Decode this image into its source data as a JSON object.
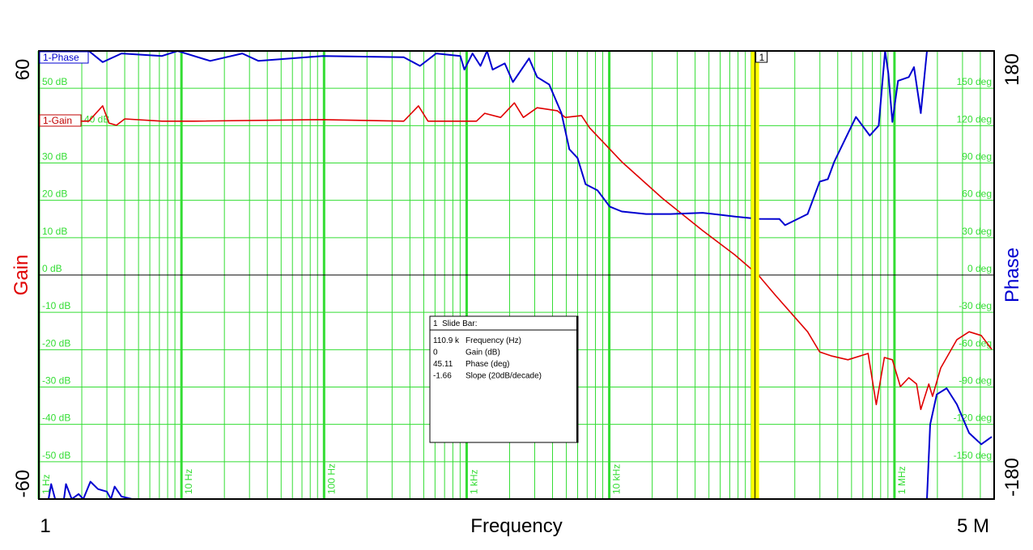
{
  "chart_data": {
    "type": "line",
    "x_scale": "log",
    "xlim": [
      1,
      5000000
    ],
    "ylim_left": [
      -60,
      60
    ],
    "ylim_right": [
      -180,
      180
    ],
    "grid": true,
    "xlabel": "Frequency",
    "ylabel_left": "Gain",
    "ylabel_right": "Phase",
    "x_end_labels": [
      "1",
      "5 M"
    ],
    "y_left_end_labels": [
      "60",
      "-60"
    ],
    "y_right_end_labels": [
      "180",
      "-180"
    ],
    "gain_ticks": [
      "50 dB",
      "40 dB",
      "30 dB",
      "20 dB",
      "10 dB",
      "0 dB",
      "-10 dB",
      "-20 dB",
      "-30 dB",
      "-40 dB",
      "-50 dB"
    ],
    "gain_tick_values": [
      50,
      40,
      30,
      20,
      10,
      0,
      -10,
      -20,
      -30,
      -40,
      -50
    ],
    "phase_ticks": [
      "150 deg",
      "120 deg",
      "90 deg",
      "60 deg",
      "30 deg",
      "0 deg",
      "-30 deg",
      "-60 deg",
      "-90 deg",
      "-120 deg",
      "-150 deg"
    ],
    "freq_labels": [
      {
        "f": 1,
        "label": "1 Hz"
      },
      {
        "f": 10,
        "label": "10 Hz"
      },
      {
        "f": 100,
        "label": "100 Hz"
      },
      {
        "f": 1000,
        "label": "1 kHz"
      },
      {
        "f": 10000,
        "label": "10 kHz"
      },
      {
        "f": 1000000,
        "label": "1 MHz"
      }
    ],
    "colors": {
      "gain": "#e00000",
      "phase": "#0000d0",
      "grid": "#33dd33",
      "slider": "#ffff00"
    },
    "series": [
      {
        "name": "1-Gain",
        "axis": "left",
        "unit": "dB",
        "segments": [
          [
            [
              1,
              41.2
            ],
            [
              2.24,
              41.2
            ],
            [
              2.8,
              45.3
            ],
            [
              3.1,
              40.7
            ],
            [
              3.5,
              40.1
            ],
            [
              4.0,
              41.8
            ],
            [
              7.3,
              41.2
            ],
            [
              12.2,
              41.2
            ],
            [
              98,
              41.6
            ],
            [
              362,
              41.2
            ],
            [
              459,
              45.3
            ],
            [
              536,
              41.2
            ],
            [
              1170,
              41.2
            ],
            [
              1340,
              43.3
            ],
            [
              1730,
              42.2
            ],
            [
              2160,
              46.1
            ],
            [
              2500,
              42.2
            ],
            [
              3120,
              44.8
            ],
            [
              4320,
              44.0
            ],
            [
              4920,
              42.2
            ],
            [
              6390,
              42.7
            ],
            [
              7280,
              39.4
            ],
            [
              12250,
              30.3
            ],
            [
              23500,
              20.6
            ],
            [
              45200,
              11.9
            ],
            [
              76000,
              5.4
            ],
            [
              110900,
              0
            ],
            [
              146000,
              -5.4
            ],
            [
              246000,
              -15.2
            ],
            [
              299000,
              -20.6
            ],
            [
              364000,
              -21.7
            ],
            [
              472000,
              -22.7
            ],
            [
              653000,
              -21.0
            ],
            [
              745000,
              -34.7
            ],
            [
              849000,
              -22.1
            ],
            [
              967000,
              -22.7
            ],
            [
              1100000,
              -29.9
            ],
            [
              1260000,
              -27.5
            ],
            [
              1430000,
              -29.2
            ],
            [
              1530000,
              -36.0
            ],
            [
              1740000,
              -29.2
            ],
            [
              1850000,
              -32.5
            ],
            [
              2110000,
              -24.9
            ],
            [
              2740000,
              -17.3
            ],
            [
              3340000,
              -15.2
            ],
            [
              4060000,
              -16.2
            ],
            [
              4810000,
              -19.9
            ]
          ]
        ]
      },
      {
        "name": "1-Phase",
        "axis": "right",
        "unit": "deg",
        "segments": [
          [
            [
              1,
              176
            ],
            [
              1.25,
              172
            ],
            [
              1.52,
              180
            ],
            [
              1.97,
              175
            ],
            [
              2.24,
              180
            ],
            [
              2.8,
              171
            ],
            [
              3.8,
              178
            ],
            [
              7.3,
              176
            ],
            [
              9.4,
              180
            ],
            [
              15.9,
              172
            ],
            [
              26.7,
              178
            ],
            [
              34.7,
              172
            ],
            [
              98,
              176
            ],
            [
              362,
              175
            ],
            [
              471,
              168
            ],
            [
              611,
              178
            ],
            [
              903,
              176
            ],
            [
              964,
              165
            ],
            [
              1100,
              178
            ],
            [
              1250,
              168
            ],
            [
              1390,
              180
            ],
            [
              1520,
              165
            ],
            [
              1850,
              170
            ],
            [
              2110,
              155
            ],
            [
              2740,
              174
            ],
            [
              3120,
              159
            ],
            [
              3790,
              153
            ],
            [
              4620,
              130
            ],
            [
              5250,
              101
            ],
            [
              5990,
              94
            ],
            [
              6820,
              73
            ],
            [
              8280,
              68
            ],
            [
              10070,
              55
            ],
            [
              12250,
              51
            ],
            [
              18100,
              49
            ],
            [
              26800,
              49
            ],
            [
              45200,
              50
            ],
            [
              76000,
              47
            ],
            [
              110900,
              45.11
            ],
            [
              156000,
              45
            ],
            [
              171000,
              40
            ],
            [
              246000,
              49
            ],
            [
              299000,
              75
            ],
            [
              341000,
              77
            ],
            [
              378000,
              91
            ],
            [
              442000,
              107
            ],
            [
              537000,
              127
            ],
            [
              671000,
              112
            ],
            [
              775000,
              120
            ],
            [
              859000,
              180
            ],
            [
              906000,
              162
            ],
            [
              967000,
              123
            ],
            [
              1060000,
              156
            ],
            [
              1260000,
              159
            ],
            [
              1370000,
              167
            ],
            [
              1530000,
              130
            ],
            [
              1690000,
              180
            ]
          ],
          [
            [
              1.17,
              -180
            ],
            [
              1.22,
              -168
            ],
            [
              1.3,
              -180
            ],
            [
              1.5,
              -180
            ],
            [
              1.55,
              -168
            ],
            [
              1.7,
              -180
            ],
            [
              1.9,
              -176
            ],
            [
              2.05,
              -180
            ],
            [
              2.3,
              -166
            ],
            [
              2.6,
              -172
            ],
            [
              3.0,
              -174
            ],
            [
              3.2,
              -180
            ],
            [
              3.4,
              -170
            ],
            [
              3.8,
              -178
            ],
            [
              4.5,
              -180
            ]
          ],
          [
            [
              1690000,
              -180
            ],
            [
              1780000,
              -120
            ],
            [
              1980000,
              -96
            ],
            [
              2320000,
              -91
            ],
            [
              2740000,
              -104
            ],
            [
              3340000,
              -127
            ],
            [
              4060000,
              -136
            ],
            [
              4810000,
              -130
            ]
          ]
        ]
      }
    ],
    "slide_bar": {
      "marker": "1",
      "frequency_hz": 110900,
      "title": "1  Slide Bar:",
      "rows": [
        {
          "value": "110.9 k",
          "label": "Frequency (Hz)"
        },
        {
          "value": "0",
          "label": "Gain (dB)"
        },
        {
          "value": "45.11",
          "label": "Phase (deg)"
        },
        {
          "value": "-1.66",
          "label": "Slope (20dB/decade)"
        }
      ]
    }
  }
}
